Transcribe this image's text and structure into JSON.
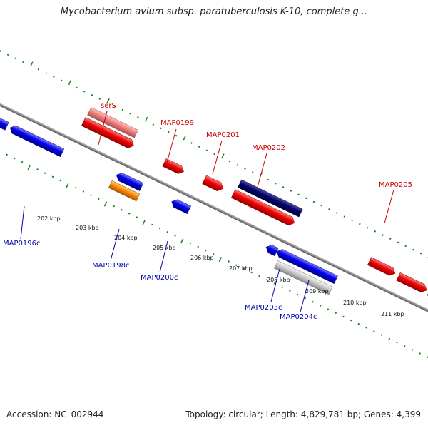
{
  "title": "Mycobacterium avium subsp. paratuberculosis K-10, complete g...",
  "footer": {
    "accession": "Accession: NC_002944",
    "topology": "Topology: circular; Length: 4,829,781 bp; Genes: 4,399"
  },
  "ticks": [
    {
      "label": "202 kbp",
      "pos": 202
    },
    {
      "label": "203 kbp",
      "pos": 203
    },
    {
      "label": "204 kbp",
      "pos": 204
    },
    {
      "label": "205 kbp",
      "pos": 205
    },
    {
      "label": "206 kbp",
      "pos": 206
    },
    {
      "label": "207 kbp",
      "pos": 207
    },
    {
      "label": "208 kbp",
      "pos": 208
    },
    {
      "label": "209 kbp",
      "pos": 209
    },
    {
      "label": "210 kbp",
      "pos": 210
    },
    {
      "label": "211 kbp",
      "pos": 211
    }
  ],
  "gene_labels": {
    "serS": "serS",
    "MAP0199": "MAP0199",
    "MAP0201": "MAP0201",
    "MAP0202": "MAP0202",
    "MAP0205": "MAP0205",
    "MAP0196c": "MAP0196c",
    "MAP0198c": "MAP0198c",
    "MAP0200c": "MAP0200c",
    "MAP0203c": "MAP0203c",
    "MAP0204c": "MAP0204c"
  },
  "colors": {
    "forward_gene": "#ee0000",
    "reverse_gene": "#0000ee",
    "rrna_like": "#f08080",
    "navy_gene": "#000070",
    "orange_gene": "#ff8800",
    "gray_gene": "#cccccc",
    "purple_gene": "#7060c0",
    "tick_green": "#118811",
    "backbone": "#888888"
  }
}
